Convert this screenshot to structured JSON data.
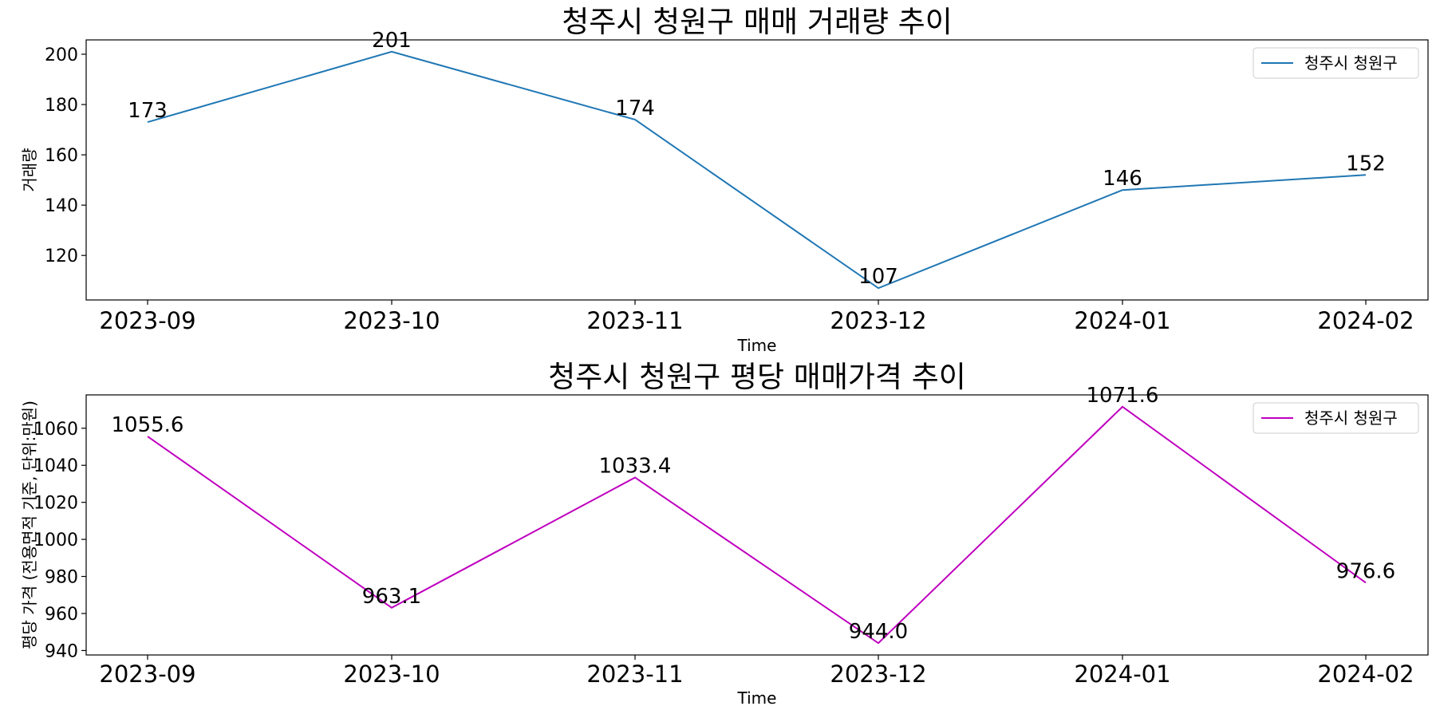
{
  "chart_data": [
    {
      "type": "line",
      "title": "청주시 청원구 매매 거래량 추이",
      "xlabel": "Time",
      "ylabel": "거래량",
      "categories": [
        "2023-09",
        "2023-10",
        "2023-11",
        "2023-12",
        "2024-01",
        "2024-02"
      ],
      "series": [
        {
          "name": "청주시 청원구",
          "values": [
            173,
            201,
            174,
            107,
            146,
            152
          ],
          "color": "#1f77b4"
        }
      ],
      "data_labels": [
        "173",
        "201",
        "174",
        "107",
        "146",
        "152"
      ],
      "yticks": [
        120,
        140,
        160,
        180,
        200
      ],
      "ylim": [
        102.3,
        205.7
      ],
      "legend": "top-right",
      "grid": false
    },
    {
      "type": "line",
      "title": "청주시 청원구 평당 매매가격 추이",
      "xlabel": "Time",
      "ylabel": "평당 가격 (전용면적 기준, 단위:만원)",
      "categories": [
        "2023-09",
        "2023-10",
        "2023-11",
        "2023-12",
        "2024-01",
        "2024-02"
      ],
      "series": [
        {
          "name": "청주시 청원구",
          "values": [
            1055.6,
            963.1,
            1033.4,
            944.0,
            1071.6,
            976.6
          ],
          "color": "#bf00bf"
        }
      ],
      "data_labels": [
        "1055.6",
        "963.1",
        "1033.4",
        "944.0",
        "1071.6",
        "976.6"
      ],
      "yticks": [
        940,
        960,
        980,
        1000,
        1020,
        1040,
        1060
      ],
      "ylim": [
        937.6,
        1078.0
      ],
      "legend": "top-right",
      "grid": false
    }
  ]
}
